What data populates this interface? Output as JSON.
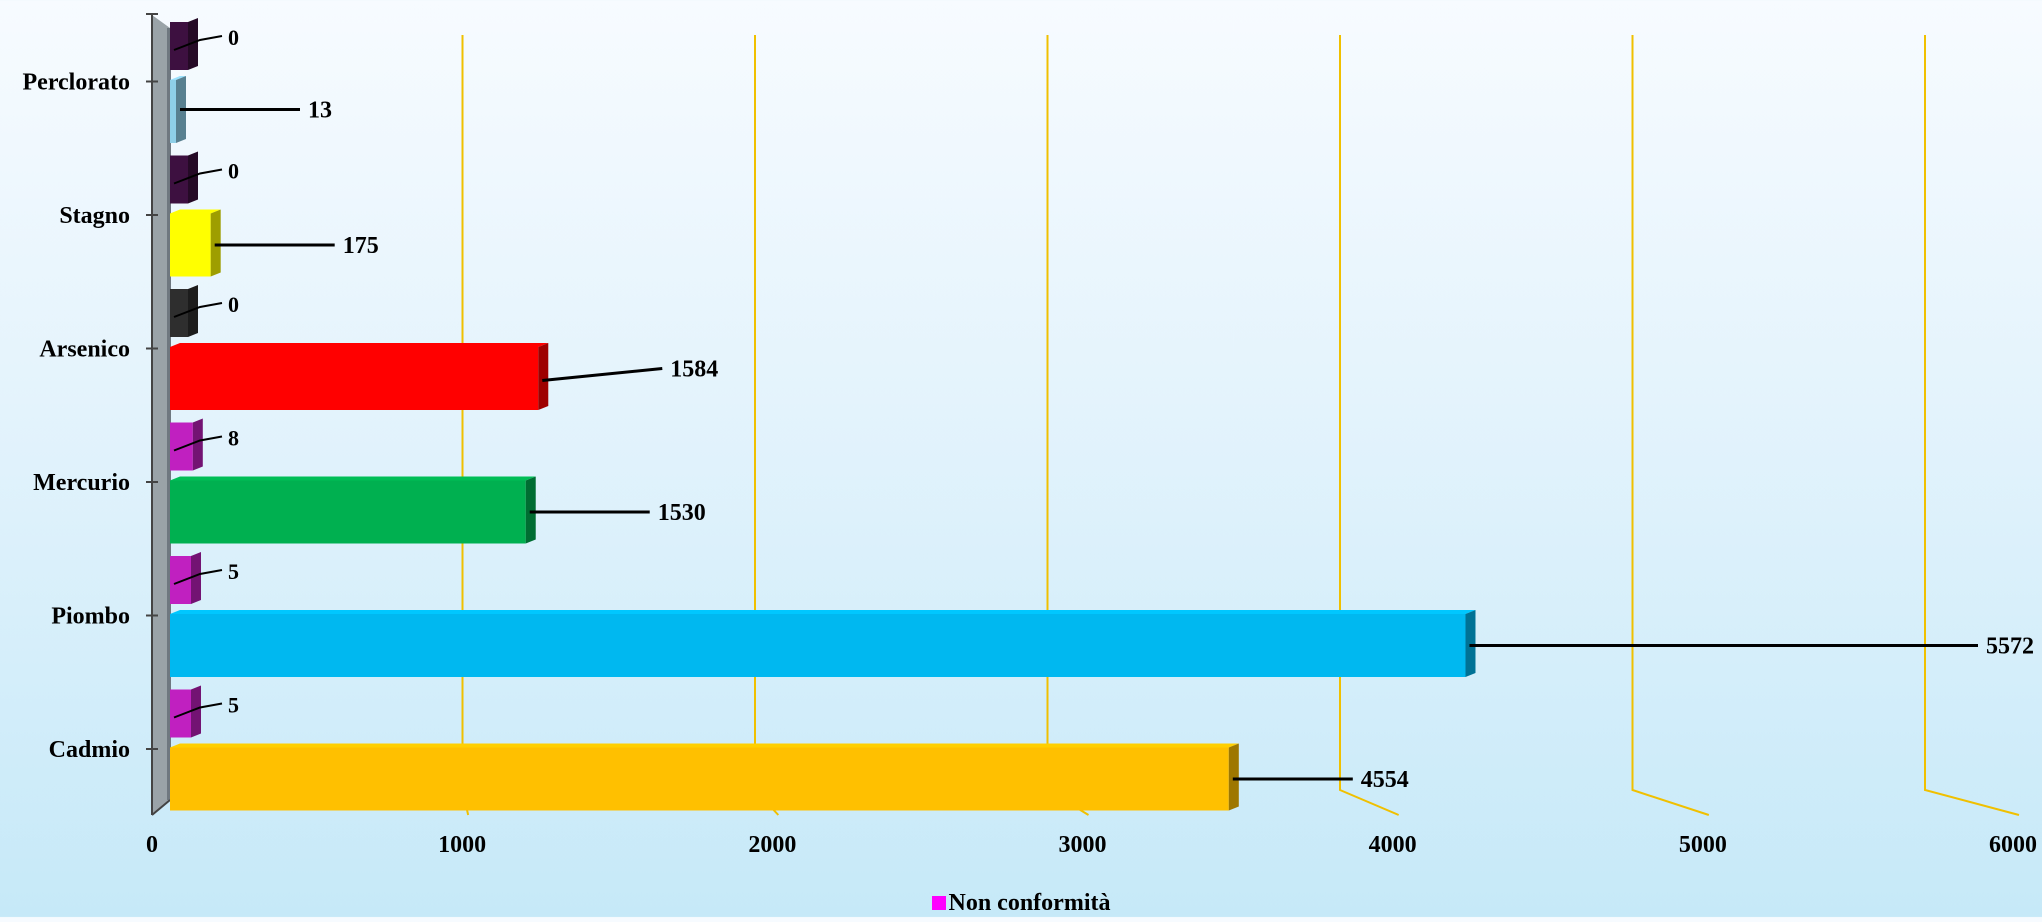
{
  "chart_data": {
    "type": "bar",
    "orientation": "horizontal",
    "categories": [
      "Perclorato",
      "Stagno",
      "Arsenico",
      "Mercurio",
      "Piombo",
      "Cadmio"
    ],
    "series": [
      {
        "values": [
          13,
          175,
          1584,
          1530,
          5572,
          4554
        ]
      },
      {
        "name": "Non conformità",
        "values": [
          0,
          0,
          0,
          8,
          5,
          5
        ]
      }
    ],
    "bar_colors": [
      "#8ecfe8",
      "#ffff00",
      "#ff0000",
      "#00b050",
      "#00b8f0",
      "#ffc000"
    ],
    "nc_colors": [
      "#3d1040",
      "#3d1040",
      "#2e2e2e",
      "#c020c0",
      "#c020c0",
      "#c020c0"
    ],
    "xticks": [
      0,
      1000,
      2000,
      3000,
      4000,
      5000,
      6000
    ],
    "xlim": [
      0,
      6000
    ],
    "gridline_color": "#f0c000",
    "grid": true,
    "legend": {
      "placement": "bottom-center",
      "label": "Non conformità",
      "color": "#ff00ff"
    }
  }
}
